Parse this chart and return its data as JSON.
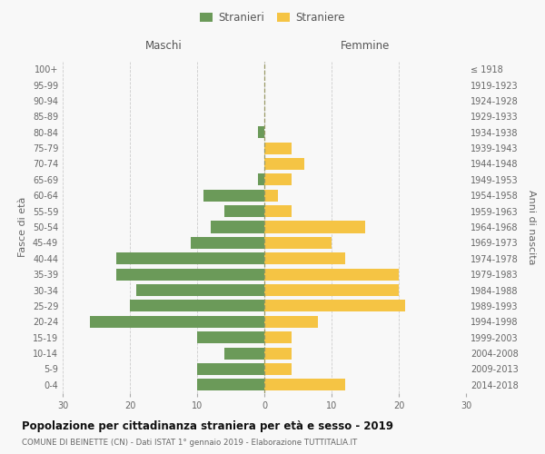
{
  "age_groups": [
    "0-4",
    "5-9",
    "10-14",
    "15-19",
    "20-24",
    "25-29",
    "30-34",
    "35-39",
    "40-44",
    "45-49",
    "50-54",
    "55-59",
    "60-64",
    "65-69",
    "70-74",
    "75-79",
    "80-84",
    "85-89",
    "90-94",
    "95-99",
    "100+"
  ],
  "birth_years": [
    "2014-2018",
    "2009-2013",
    "2004-2008",
    "1999-2003",
    "1994-1998",
    "1989-1993",
    "1984-1988",
    "1979-1983",
    "1974-1978",
    "1969-1973",
    "1964-1968",
    "1959-1963",
    "1954-1958",
    "1949-1953",
    "1944-1948",
    "1939-1943",
    "1934-1938",
    "1929-1933",
    "1924-1928",
    "1919-1923",
    "≤ 1918"
  ],
  "maschi": [
    10,
    10,
    6,
    10,
    26,
    20,
    19,
    22,
    22,
    11,
    8,
    6,
    9,
    1,
    0,
    0,
    1,
    0,
    0,
    0,
    0
  ],
  "femmine": [
    12,
    4,
    4,
    4,
    8,
    21,
    20,
    20,
    12,
    10,
    15,
    4,
    2,
    4,
    6,
    4,
    0,
    0,
    0,
    0,
    0
  ],
  "male_color": "#6b9a59",
  "female_color": "#f5c444",
  "background_color": "#f8f8f8",
  "grid_color": "#cccccc",
  "title": "Popolazione per cittadinanza straniera per età e sesso - 2019",
  "subtitle": "COMUNE DI BEINETTE (CN) - Dati ISTAT 1° gennaio 2019 - Elaborazione TUTTITALIA.IT",
  "ylabel_left": "Fasce di età",
  "ylabel_right": "Anni di nascita",
  "label_maschi": "Maschi",
  "label_femmine": "Femmine",
  "legend_male": "Stranieri",
  "legend_female": "Straniere",
  "xlim": 30,
  "bar_height": 0.75
}
